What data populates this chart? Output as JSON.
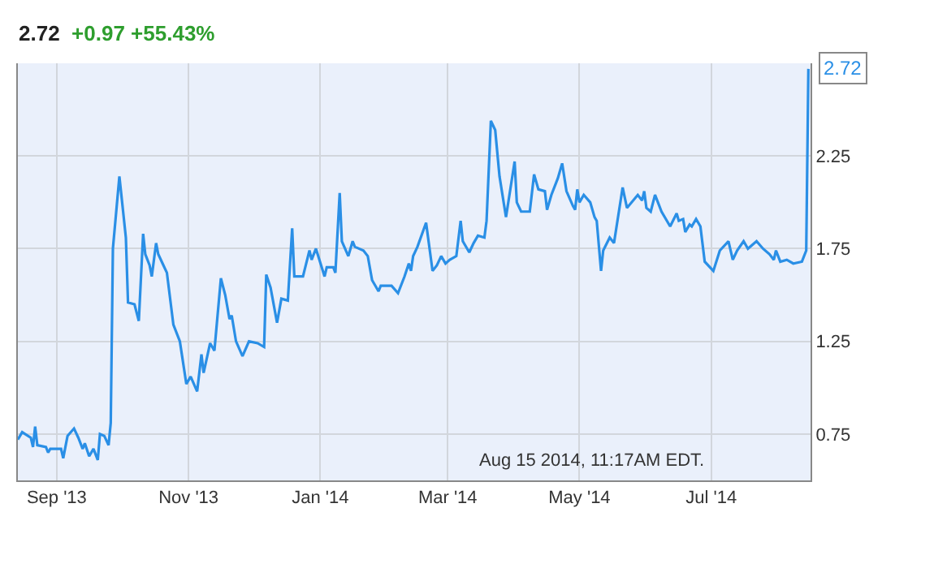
{
  "chart_data": {
    "type": "line",
    "title": "2.72",
    "subtitle": "+0.97 +55.43%",
    "x": [
      "2013-08-14",
      "2013-08-16",
      "2013-08-20",
      "2013-08-21",
      "2013-08-22",
      "2013-08-23",
      "2013-08-27",
      "2013-08-28",
      "2013-08-29",
      "2013-09-03",
      "2013-09-04",
      "2013-09-06",
      "2013-09-09",
      "2013-09-11",
      "2013-09-13",
      "2013-09-14",
      "2013-09-16",
      "2013-09-18",
      "2013-09-20",
      "2013-09-21",
      "2013-09-23",
      "2013-09-25",
      "2013-09-26",
      "2013-09-27",
      "2013-09-30",
      "2013-10-03",
      "2013-10-04",
      "2013-10-07",
      "2013-10-09",
      "2013-10-11",
      "2013-10-12",
      "2013-10-14",
      "2013-10-15",
      "2013-10-17",
      "2013-10-18",
      "2013-10-20",
      "2013-10-22",
      "2013-10-25",
      "2013-10-28",
      "2013-10-31",
      "2013-11-02",
      "2013-11-05",
      "2013-11-07",
      "2013-11-08",
      "2013-11-11",
      "2013-11-13",
      "2013-11-16",
      "2013-11-18",
      "2013-11-20",
      "2013-11-21",
      "2013-11-23",
      "2013-11-26",
      "2013-11-29",
      "2013-12-03",
      "2013-12-06",
      "2013-12-07",
      "2013-12-09",
      "2013-12-12",
      "2013-12-14",
      "2013-12-17",
      "2013-12-19",
      "2013-12-20",
      "2013-12-24",
      "2013-12-27",
      "2013-12-28",
      "2013-12-30",
      "2014-01-03",
      "2014-01-04",
      "2014-01-07",
      "2014-01-08",
      "2014-01-10",
      "2014-01-11",
      "2014-01-14",
      "2014-01-16",
      "2014-01-17",
      "2014-01-21",
      "2014-01-23",
      "2014-01-25",
      "2014-01-28",
      "2014-01-29",
      "2014-02-03",
      "2014-02-06",
      "2014-02-09",
      "2014-02-11",
      "2014-02-12",
      "2014-02-13",
      "2014-02-15",
      "2014-02-19",
      "2014-02-22",
      "2014-02-24",
      "2014-02-26",
      "2014-02-28",
      "2014-03-02",
      "2014-03-05",
      "2014-03-07",
      "2014-03-08",
      "2014-03-11",
      "2014-03-13",
      "2014-03-15",
      "2014-03-18",
      "2014-03-19",
      "2014-03-21",
      "2014-03-23",
      "2014-03-25",
      "2014-03-28",
      "2014-04-01",
      "2014-04-02",
      "2014-04-04",
      "2014-04-08",
      "2014-04-10",
      "2014-04-12",
      "2014-04-15",
      "2014-04-16",
      "2014-04-18",
      "2014-04-21",
      "2014-04-23",
      "2014-04-25",
      "2014-04-28",
      "2014-04-29",
      "2014-04-30",
      "2014-05-01",
      "2014-05-03",
      "2014-05-06",
      "2014-05-08",
      "2014-05-09",
      "2014-05-11",
      "2014-05-12",
      "2014-05-15",
      "2014-05-17",
      "2014-05-19",
      "2014-05-21",
      "2014-05-23",
      "2014-05-28",
      "2014-05-30",
      "2014-05-31",
      "2014-06-01",
      "2014-06-03",
      "2014-06-05",
      "2014-06-08",
      "2014-06-12",
      "2014-06-15",
      "2014-06-16",
      "2014-06-18",
      "2014-06-19",
      "2014-06-21",
      "2014-06-22",
      "2014-06-24",
      "2014-06-26",
      "2014-06-28",
      "2014-07-02",
      "2014-07-05",
      "2014-07-09",
      "2014-07-11",
      "2014-07-13",
      "2014-07-16",
      "2014-07-18",
      "2014-07-22",
      "2014-07-25",
      "2014-07-28",
      "2014-07-30",
      "2014-07-31",
      "2014-08-02",
      "2014-08-05",
      "2014-08-08",
      "2014-08-12",
      "2014-08-14",
      "2014-08-15"
    ],
    "series": [
      {
        "color": "#2a8fe6",
        "values": [
          0.72,
          0.76,
          0.73,
          0.68,
          0.79,
          0.69,
          0.68,
          0.65,
          0.67,
          0.67,
          0.62,
          0.74,
          0.78,
          0.73,
          0.67,
          0.7,
          0.63,
          0.67,
          0.61,
          0.75,
          0.74,
          0.69,
          0.81,
          1.75,
          2.14,
          1.81,
          1.46,
          1.45,
          1.36,
          1.83,
          1.72,
          1.66,
          1.6,
          1.78,
          1.72,
          1.67,
          1.62,
          1.34,
          1.25,
          1.02,
          1.06,
          0.98,
          1.18,
          1.08,
          1.24,
          1.2,
          1.59,
          1.5,
          1.37,
          1.39,
          1.25,
          1.17,
          1.25,
          1.24,
          1.22,
          1.61,
          1.54,
          1.35,
          1.48,
          1.47,
          1.86,
          1.6,
          1.6,
          1.74,
          1.69,
          1.75,
          1.6,
          1.65,
          1.65,
          1.62,
          2.05,
          1.79,
          1.71,
          1.79,
          1.76,
          1.74,
          1.71,
          1.58,
          1.52,
          1.55,
          1.55,
          1.51,
          1.6,
          1.67,
          1.63,
          1.71,
          1.76,
          1.89,
          1.63,
          1.66,
          1.71,
          1.67,
          1.69,
          1.71,
          1.9,
          1.79,
          1.73,
          1.78,
          1.82,
          1.81,
          1.9,
          2.44,
          2.39,
          2.14,
          1.92,
          2.22,
          2.0,
          1.95,
          1.95,
          2.15,
          2.07,
          2.06,
          1.96,
          2.04,
          2.13,
          2.21,
          2.06,
          1.98,
          1.96,
          2.07,
          2.0,
          2.04,
          2.0,
          1.92,
          1.9,
          1.63,
          1.74,
          1.81,
          1.78,
          1.93,
          2.08,
          1.97,
          2.04,
          2.01,
          2.06,
          1.97,
          1.95,
          2.04,
          1.95,
          1.87,
          1.94,
          1.9,
          1.91,
          1.84,
          1.88,
          1.87,
          1.91,
          1.87,
          1.68,
          1.63,
          1.74,
          1.79,
          1.69,
          1.74,
          1.79,
          1.75,
          1.79,
          1.75,
          1.72,
          1.69,
          1.74,
          1.68,
          1.69,
          1.67,
          1.68,
          1.74,
          2.72
        ]
      }
    ],
    "xlim": [
      "2013-08-14",
      "2014-08-16"
    ],
    "xticks": [
      {
        "value": "2013-09-01",
        "label": "Sep '13"
      },
      {
        "value": "2013-11-01",
        "label": "Nov '13"
      },
      {
        "value": "2014-01-01",
        "label": "Jan '14"
      },
      {
        "value": "2014-03-01",
        "label": "Mar '14"
      },
      {
        "value": "2014-05-01",
        "label": "May '14"
      },
      {
        "value": "2014-07-01",
        "label": "Jul '14"
      }
    ],
    "ylim": [
      0.5,
      2.75
    ],
    "yticks": [
      0.75,
      1.25,
      1.75,
      2.25,
      {
        "value": 2.75,
        "label": null
      }
    ],
    "grid": true,
    "marker": "none",
    "line_style": "solid",
    "annotations": [
      {
        "text": "2.72",
        "x": "2014-08-15",
        "y": 2.72
      },
      "Aug 15 2014, 11:17AM EDT."
    ]
  }
}
